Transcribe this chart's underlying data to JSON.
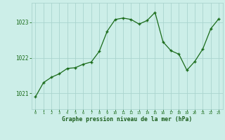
{
  "x": [
    0,
    1,
    2,
    3,
    4,
    5,
    6,
    7,
    8,
    9,
    10,
    11,
    12,
    13,
    14,
    15,
    16,
    17,
    18,
    19,
    20,
    21,
    22,
    23
  ],
  "y": [
    1020.9,
    1021.3,
    1021.45,
    1021.55,
    1021.7,
    1021.72,
    1021.82,
    1021.88,
    1022.18,
    1022.75,
    1023.08,
    1023.12,
    1023.08,
    1022.95,
    1023.05,
    1023.28,
    1022.45,
    1022.2,
    1022.1,
    1021.65,
    1021.9,
    1022.25,
    1022.82,
    1023.1
  ],
  "line_color": "#1a6b1a",
  "marker_color": "#1a6b1a",
  "bg_color": "#cceee8",
  "grid_color": "#aad4ce",
  "xlabel": "Graphe pression niveau de la mer (hPa)",
  "xlabel_color": "#1a5c1a",
  "tick_color": "#1a6b1a",
  "ylim": [
    1020.55,
    1023.55
  ],
  "yticks": [
    1021,
    1022,
    1023
  ],
  "xlim": [
    -0.5,
    23.5
  ],
  "font_size": 7.5
}
